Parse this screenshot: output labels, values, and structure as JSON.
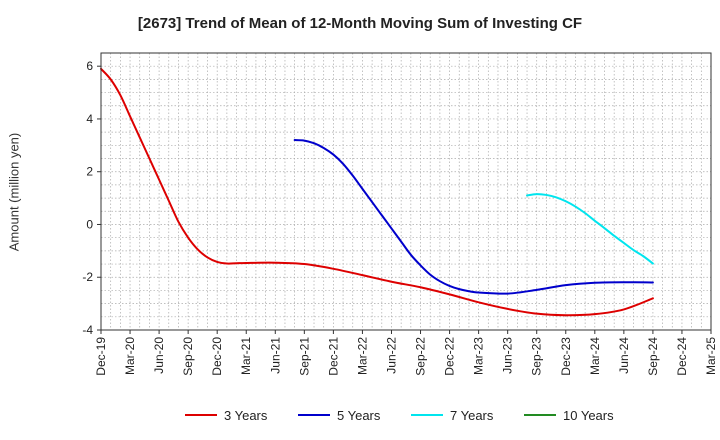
{
  "chart_data": {
    "type": "line",
    "title": "[2673]  Trend of Mean of 12-Month Moving Sum of Investing CF",
    "xlabel": "",
    "ylabel": "Amount (million yen)",
    "ylim": [
      -4,
      6.5
    ],
    "yticks": [
      -4,
      -2,
      0,
      2,
      4,
      6
    ],
    "x_ticks": [
      "Dec-19",
      "Mar-20",
      "Jun-20",
      "Sep-20",
      "Dec-20",
      "Mar-21",
      "Jun-21",
      "Sep-21",
      "Dec-21",
      "Mar-22",
      "Jun-22",
      "Sep-22",
      "Dec-22",
      "Mar-23",
      "Jun-23",
      "Sep-23",
      "Dec-23",
      "Mar-24",
      "Jun-24",
      "Sep-24",
      "Dec-24",
      "Mar-25"
    ],
    "grid": true,
    "legend_position": "bottom",
    "series": [
      {
        "name": "3 Years",
        "color": "#dd0000",
        "x": [
          "Dec-19",
          "Jan-20",
          "Feb-20",
          "Mar-20",
          "Apr-20",
          "May-20",
          "Jun-20",
          "Jul-20",
          "Aug-20",
          "Sep-20",
          "Oct-20",
          "Nov-20",
          "Dec-20",
          "Jan-21",
          "Feb-21",
          "Mar-21",
          "Jun-21",
          "Sep-21",
          "Dec-21",
          "Mar-22",
          "Jun-22",
          "Sep-22",
          "Dec-22",
          "Mar-23",
          "Jun-23",
          "Sep-23",
          "Dec-23",
          "Mar-24",
          "Jun-24",
          "Sep-24"
        ],
        "values": [
          5.9,
          5.5,
          4.9,
          4.1,
          3.3,
          2.5,
          1.7,
          0.9,
          0.1,
          -0.5,
          -0.95,
          -1.25,
          -1.42,
          -1.48,
          -1.47,
          -1.46,
          -1.45,
          -1.5,
          -1.68,
          -1.92,
          -2.17,
          -2.38,
          -2.65,
          -2.95,
          -3.2,
          -3.38,
          -3.44,
          -3.4,
          -3.22,
          -2.8
        ]
      },
      {
        "name": "5 Years",
        "color": "#0000cc",
        "x": [
          "Aug-21",
          "Sep-21",
          "Oct-21",
          "Nov-21",
          "Dec-21",
          "Jan-22",
          "Feb-22",
          "Mar-22",
          "Apr-22",
          "May-22",
          "Jun-22",
          "Jul-22",
          "Aug-22",
          "Sep-22",
          "Oct-22",
          "Nov-22",
          "Dec-22",
          "Jan-23",
          "Feb-23",
          "Mar-23",
          "Jun-23",
          "Sep-23",
          "Dec-23",
          "Mar-24",
          "Jun-24",
          "Sep-24"
        ],
        "values": [
          3.2,
          3.18,
          3.08,
          2.9,
          2.65,
          2.3,
          1.85,
          1.35,
          0.85,
          0.35,
          -0.15,
          -0.65,
          -1.15,
          -1.55,
          -1.9,
          -2.15,
          -2.33,
          -2.45,
          -2.53,
          -2.58,
          -2.62,
          -2.48,
          -2.3,
          -2.21,
          -2.19,
          -2.2
        ]
      },
      {
        "name": "7 Years",
        "color": "#00e5ee",
        "x": [
          "Aug-23",
          "Sep-23",
          "Oct-23",
          "Nov-23",
          "Dec-23",
          "Jan-24",
          "Feb-24",
          "Mar-24",
          "Apr-24",
          "May-24",
          "Jun-24",
          "Jul-24",
          "Aug-24",
          "Sep-24"
        ],
        "values": [
          1.1,
          1.15,
          1.12,
          1.03,
          0.88,
          0.68,
          0.43,
          0.14,
          -0.14,
          -0.43,
          -0.7,
          -0.97,
          -1.2,
          -1.48
        ]
      },
      {
        "name": "10 Years",
        "color": "#228b22",
        "x": [],
        "values": []
      }
    ]
  }
}
